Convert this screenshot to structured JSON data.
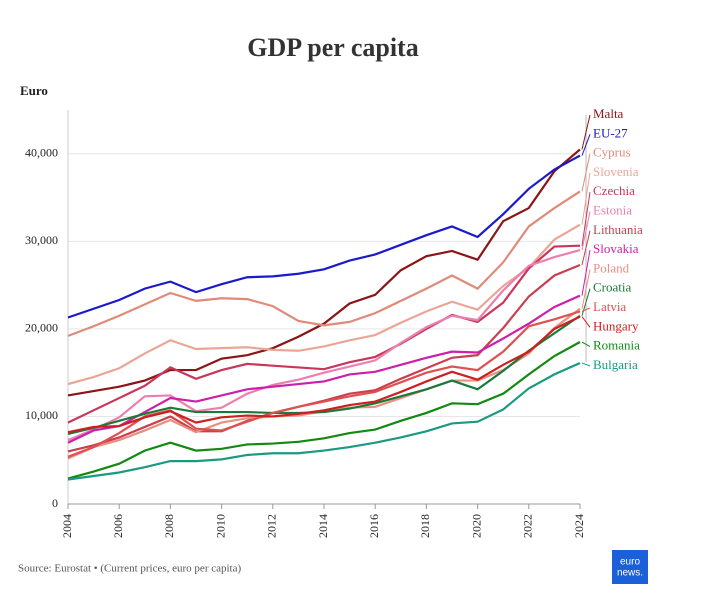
{
  "chart_data": {
    "type": "line",
    "title": "GDP per capita",
    "y_label": "Euro",
    "source": "Source: Eurostat • (Current prices, euro per capita)",
    "logo": [
      "euro",
      "news."
    ],
    "x": [
      2004,
      2005,
      2006,
      2007,
      2008,
      2009,
      2010,
      2011,
      2012,
      2013,
      2014,
      2015,
      2016,
      2017,
      2018,
      2019,
      2020,
      2021,
      2022,
      2023,
      2024
    ],
    "xlim": [
      2004,
      2024
    ],
    "xticks": [
      2004,
      2006,
      2008,
      2010,
      2012,
      2014,
      2016,
      2018,
      2020,
      2022,
      2024
    ],
    "ylim": [
      0,
      45000
    ],
    "yticks": [
      0,
      {
        "value": 10000,
        "label": "10,000"
      },
      {
        "value": 20000,
        "label": "20,000"
      },
      {
        "value": 30000,
        "label": "30,000"
      },
      {
        "value": 40000,
        "label": "40,000"
      }
    ],
    "grid": true,
    "series": [
      {
        "name": "Malta",
        "color": "#8b1414",
        "values": [
          12400,
          12900,
          13400,
          14100,
          15300,
          15300,
          16600,
          17000,
          17800,
          19100,
          20600,
          22900,
          23900,
          26700,
          28300,
          28900,
          27900,
          32300,
          33800,
          38000,
          40500
        ]
      },
      {
        "name": "EU-27",
        "color": "#1a1acc",
        "values": [
          21300,
          22300,
          23300,
          24600,
          25400,
          24200,
          25100,
          25900,
          26000,
          26300,
          26800,
          27800,
          28500,
          29600,
          30700,
          31700,
          30500,
          33100,
          36000,
          38200,
          39800
        ]
      },
      {
        "name": "Cyprus",
        "color": "#e08a7a",
        "values": [
          19200,
          20300,
          21500,
          22800,
          24100,
          23200,
          23500,
          23400,
          22600,
          20900,
          20400,
          20800,
          21800,
          23200,
          24600,
          26100,
          24600,
          27600,
          31700,
          33800,
          35700
        ]
      },
      {
        "name": "Slovenia",
        "color": "#eba597",
        "values": [
          13700,
          14500,
          15500,
          17200,
          18700,
          17700,
          17800,
          17900,
          17600,
          17500,
          18000,
          18700,
          19300,
          20700,
          22000,
          23100,
          22200,
          24900,
          27000,
          30200,
          31900
        ]
      },
      {
        "name": "Czechia",
        "color": "#c8365a",
        "values": [
          9300,
          10700,
          12100,
          13500,
          15600,
          14300,
          15300,
          16000,
          15800,
          15600,
          15400,
          16200,
          16800,
          18300,
          20000,
          21600,
          20800,
          23000,
          26900,
          29400,
          29500
        ]
      },
      {
        "name": "Estonia",
        "color": "#ec7fae",
        "values": [
          7300,
          8500,
          9900,
          12300,
          12400,
          10600,
          11000,
          12600,
          13600,
          14200,
          15000,
          15700,
          16400,
          18400,
          20200,
          21500,
          21000,
          24400,
          27200,
          28200,
          29000
        ]
      },
      {
        "name": "Lithuania",
        "color": "#c84050",
        "values": [
          6000,
          6700,
          7600,
          8800,
          10000,
          8300,
          8300,
          9500,
          10400,
          11100,
          11800,
          12600,
          13000,
          14300,
          15500,
          16700,
          17000,
          20100,
          23700,
          26100,
          27300
        ]
      },
      {
        "name": "Slovakia",
        "color": "#cc20aa",
        "values": [
          7000,
          8400,
          8900,
          10500,
          12100,
          11700,
          12400,
          13100,
          13400,
          13700,
          14000,
          14800,
          15100,
          15900,
          16700,
          17400,
          17300,
          18900,
          20600,
          22500,
          23800
        ]
      },
      {
        "name": "Poland",
        "color": "#e89080",
        "values": [
          5200,
          6500,
          7300,
          8400,
          9600,
          8200,
          9300,
          9800,
          10000,
          10100,
          10600,
          11000,
          11100,
          12100,
          13100,
          14100,
          14100,
          15300,
          17200,
          20100,
          22300
        ]
      },
      {
        "name": "Croatia",
        "color": "#1a7a3a",
        "values": [
          8000,
          8700,
          9500,
          10300,
          11000,
          10500,
          10500,
          10500,
          10400,
          10400,
          10500,
          10900,
          11500,
          12300,
          13100,
          14100,
          13100,
          15200,
          17500,
          19500,
          21500
        ]
      },
      {
        "name": "Latvia",
        "color": "#e05050",
        "values": [
          5400,
          6500,
          8100,
          10000,
          10700,
          8600,
          8400,
          9400,
          10400,
          11100,
          11700,
          12300,
          12800,
          13900,
          15000,
          15700,
          15300,
          17400,
          20300,
          21100,
          22000
        ]
      },
      {
        "name": "Hungary",
        "color": "#cc2020",
        "values": [
          8200,
          8800,
          8900,
          9900,
          10600,
          9300,
          9900,
          10100,
          10000,
          10300,
          10700,
          11300,
          11700,
          12800,
          14000,
          15100,
          14200,
          15900,
          17400,
          20000,
          21400
        ]
      },
      {
        "name": "Romania",
        "color": "#128a12",
        "values": [
          2900,
          3700,
          4600,
          6100,
          7000,
          6100,
          6300,
          6800,
          6900,
          7100,
          7500,
          8100,
          8500,
          9500,
          10400,
          11500,
          11400,
          12600,
          14800,
          16900,
          18500
        ]
      },
      {
        "name": "Bulgaria",
        "color": "#1a9a80",
        "values": [
          2800,
          3200,
          3600,
          4200,
          4900,
          4900,
          5100,
          5600,
          5800,
          5800,
          6100,
          6500,
          7000,
          7600,
          8300,
          9200,
          9400,
          10800,
          13200,
          14800,
          16100
        ]
      }
    ]
  }
}
